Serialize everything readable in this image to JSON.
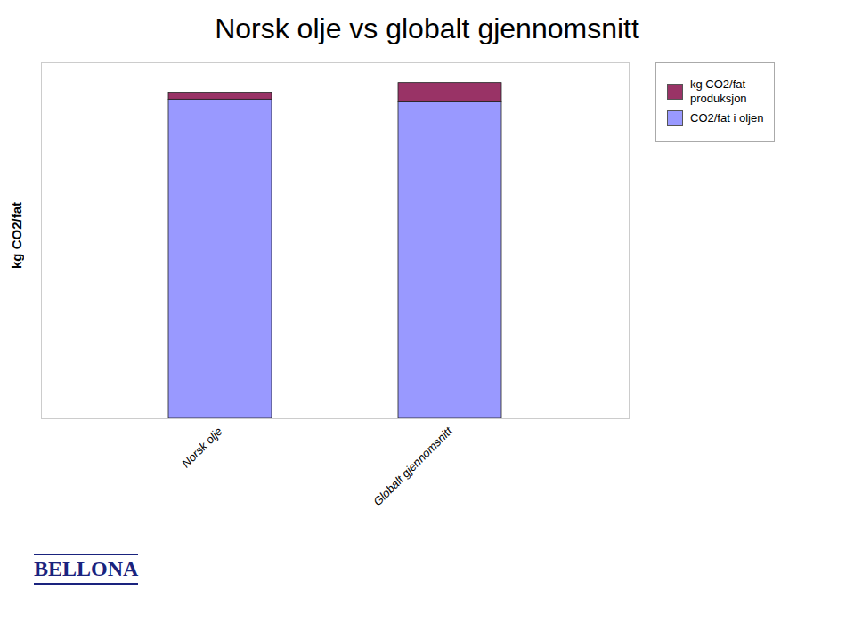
{
  "chart_data": {
    "type": "bar",
    "title": "Norsk olje vs globalt gjennomsnitt",
    "categories": [
      "Norsk olje",
      "Globalt gjennomsnitt"
    ],
    "series": [
      {
        "name": "CO2/fat i oljen",
        "color": "#9999FF",
        "values": [
          230,
          228
        ]
      },
      {
        "name": "kg CO2/fat\nproduksjon",
        "color": "#993366",
        "values": [
          5,
          14
        ]
      }
    ],
    "stacked": true,
    "ylabel": "kg CO2/fat",
    "ylim": [
      0,
      256.52
    ],
    "tick_labels": "x",
    "grid": false,
    "legend": "right",
    "annotations": [
      {
        "text": "BELLONA",
        "color": "#1a237e"
      }
    ]
  }
}
